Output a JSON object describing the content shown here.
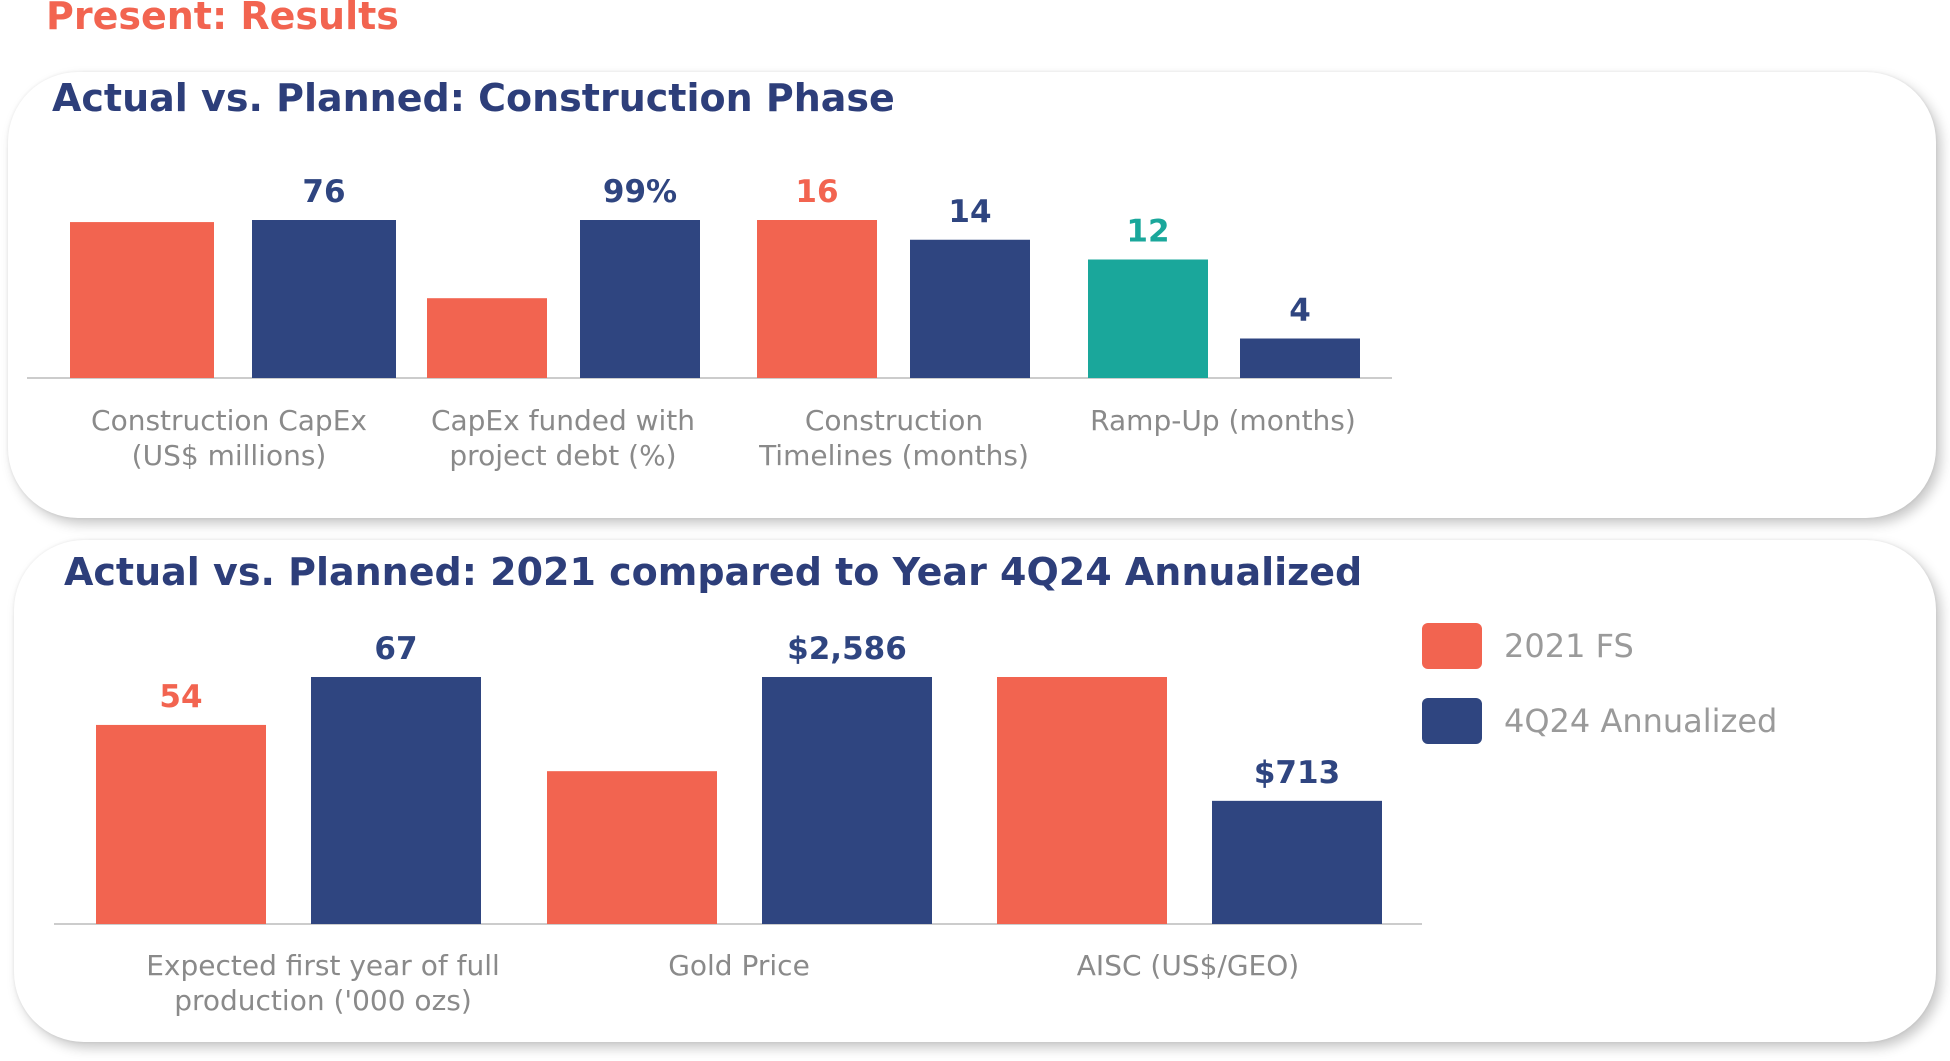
{
  "header": {
    "title": "Present: Results"
  },
  "colors": {
    "fs": "#f26450",
    "actual": "#2f4580",
    "highlight": "#1aa79b",
    "axis": "#cccccc",
    "label": "#8a8a8a"
  },
  "legend": [
    {
      "label": "2021 FS",
      "color": "#f26450"
    },
    {
      "label": "4Q24 Annualized",
      "color": "#2f4580"
    }
  ],
  "chart_data": [
    {
      "type": "bar",
      "title": "Actual vs. Planned: Construction Phase",
      "categories": [
        [
          "Construction CapEx",
          "(US$ millions)"
        ],
        [
          "CapEx funded with",
          "project debt (%)"
        ],
        [
          "Construction",
          "Timelines (months)"
        ],
        [
          "Ramp-Up (months)"
        ]
      ],
      "series": [
        {
          "name": "2021 FS",
          "values": [
            75,
            50,
            16,
            12
          ],
          "labels": [
            "",
            "",
            "16",
            "12"
          ],
          "colors": [
            "#f26450",
            "#f26450",
            "#f26450",
            "#1aa79b"
          ]
        },
        {
          "name": "4Q24 Annualized",
          "values": [
            76,
            99,
            14,
            4
          ],
          "labels": [
            "76",
            "99%",
            "14",
            "4"
          ],
          "colors": [
            "#2f4580",
            "#2f4580",
            "#2f4580",
            "#2f4580"
          ]
        }
      ]
    },
    {
      "type": "bar",
      "title": "Actual vs. Planned: 2021 compared to Year 4Q24 Annualized",
      "categories": [
        [
          "Expected first year of full",
          "production ('000 ozs)"
        ],
        [
          "Gold Price"
        ],
        [
          "AISC (US$/GEO)"
        ]
      ],
      "series": [
        {
          "name": "2021 FS",
          "values": [
            54,
            1600,
            1430
          ],
          "labels": [
            "54",
            "",
            ""
          ],
          "colors": [
            "#f26450",
            "#f26450",
            "#f26450"
          ]
        },
        {
          "name": "4Q24 Annualized",
          "values": [
            67,
            2586,
            713
          ],
          "labels": [
            "67",
            "$2,586",
            "$713"
          ],
          "colors": [
            "#2f4580",
            "#2f4580",
            "#2f4580"
          ]
        }
      ]
    }
  ]
}
